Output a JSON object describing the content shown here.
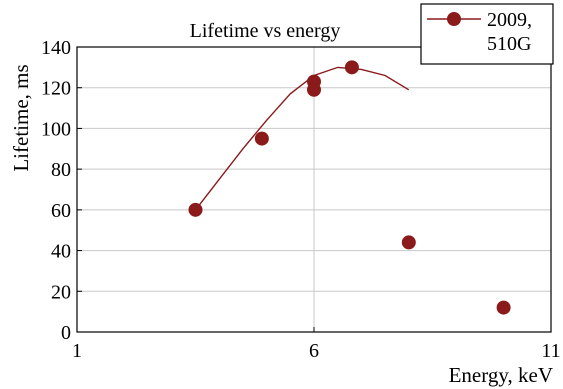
{
  "chart_data": {
    "type": "line",
    "title": "Lifetime vs energy",
    "xlabel": "Energy, keV",
    "ylabel": "Lifetime, ms",
    "xlim": [
      1,
      11
    ],
    "ylim": [
      0,
      140
    ],
    "x_ticks": [
      1,
      6,
      11
    ],
    "y_ticks": [
      0,
      20,
      40,
      60,
      80,
      100,
      120,
      140
    ],
    "grid": true,
    "legend_position": "top-right",
    "series": [
      {
        "name": "2009, 510G",
        "legend_lines": [
          "2009,",
          "510G"
        ],
        "color": "#8b1a1a",
        "marker": "circle",
        "points": [
          [
            3.5,
            60
          ],
          [
            4.9,
            95
          ],
          [
            6.0,
            123
          ],
          [
            6.8,
            130
          ],
          [
            6.0,
            119
          ],
          [
            8.0,
            44
          ],
          [
            10.0,
            12
          ]
        ],
        "curve": [
          [
            3.5,
            60
          ],
          [
            4.0,
            75
          ],
          [
            4.5,
            90
          ],
          [
            5.0,
            104
          ],
          [
            5.5,
            117
          ],
          [
            6.0,
            126
          ],
          [
            6.5,
            130
          ],
          [
            7.0,
            129
          ],
          [
            7.5,
            126
          ],
          [
            8.0,
            119
          ]
        ]
      }
    ]
  }
}
